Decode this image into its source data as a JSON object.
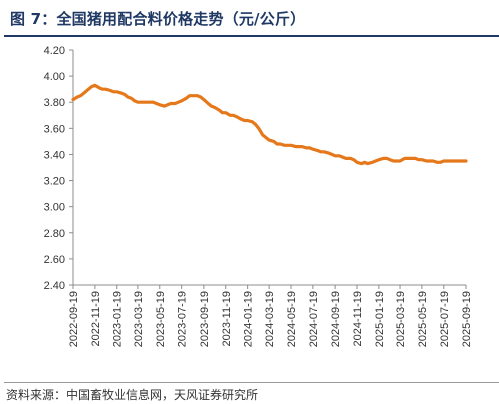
{
  "header": {
    "title": "图 7：全国猪用配合料价格走势（元/公斤）"
  },
  "footer": {
    "source": "资料来源：中国畜牧业信息网，天风证券研究所"
  },
  "chart_data": {
    "type": "line",
    "title": "图 7：全国猪用配合料价格走势（元/公斤）",
    "xlabel": "",
    "ylabel": "",
    "ylim": [
      2.4,
      4.2
    ],
    "yticks": [
      2.4,
      2.6,
      2.8,
      3.0,
      3.2,
      3.4,
      3.6,
      3.8,
      4.0,
      4.2
    ],
    "ytick_labels": [
      "2.40",
      "2.60",
      "2.80",
      "3.00",
      "3.20",
      "3.40",
      "3.60",
      "3.80",
      "4.00",
      "4.20"
    ],
    "xtick_labels": [
      "2022-09-19",
      "2022-11-19",
      "2023-01-19",
      "2023-03-19",
      "2023-05-19",
      "2023-07-19",
      "2023-09-19",
      "2023-11-19",
      "2024-01-19",
      "2024-03-19",
      "2024-05-19",
      "2024-07-19",
      "2024-09-19",
      "2024-11-19",
      "2025-01-19",
      "2025-03-19",
      "2025-05-19",
      "2025-07-19",
      "2025-09-19"
    ],
    "grid": false,
    "legend": "none",
    "line_color": "#e5781b",
    "series": [
      {
        "x": [
          "2022-09-19",
          "2022-10-01",
          "2022-10-10",
          "2022-10-19",
          "2022-11-01",
          "2022-11-10",
          "2022-11-19",
          "2022-12-01",
          "2022-12-10",
          "2022-12-19",
          "2023-01-01",
          "2023-01-10",
          "2023-01-19",
          "2023-02-01",
          "2023-02-10",
          "2023-02-19",
          "2023-03-01",
          "2023-03-10",
          "2023-03-19",
          "2023-04-01",
          "2023-04-10",
          "2023-04-19",
          "2023-05-01",
          "2023-05-10",
          "2023-05-19",
          "2023-06-01",
          "2023-06-10",
          "2023-06-19",
          "2023-07-01",
          "2023-07-10",
          "2023-07-19",
          "2023-08-01",
          "2023-08-10",
          "2023-08-19",
          "2023-09-01",
          "2023-09-10",
          "2023-09-19",
          "2023-10-01",
          "2023-10-10",
          "2023-10-19",
          "2023-11-01",
          "2023-11-10",
          "2023-11-19",
          "2023-12-01",
          "2023-12-10",
          "2023-12-19",
          "2024-01-01",
          "2024-01-10",
          "2024-01-19",
          "2024-02-01",
          "2024-02-10",
          "2024-02-19",
          "2024-03-01",
          "2024-03-10",
          "2024-03-19",
          "2024-04-01",
          "2024-04-10",
          "2024-04-19",
          "2024-05-01",
          "2024-05-10",
          "2024-05-19",
          "2024-06-01",
          "2024-06-10",
          "2024-06-19",
          "2024-07-01",
          "2024-07-10",
          "2024-07-19",
          "2024-08-01",
          "2024-08-10",
          "2024-08-19",
          "2024-09-01",
          "2024-09-10",
          "2024-09-19",
          "2024-10-01",
          "2024-10-10",
          "2024-10-19",
          "2024-11-01",
          "2024-11-10",
          "2024-11-19",
          "2024-12-01",
          "2024-12-10",
          "2024-12-19",
          "2025-01-01",
          "2025-01-10",
          "2025-01-19",
          "2025-02-01",
          "2025-02-10",
          "2025-02-19",
          "2025-03-01",
          "2025-03-10",
          "2025-03-19",
          "2025-04-01",
          "2025-04-10",
          "2025-04-19",
          "2025-05-01",
          "2025-05-10",
          "2025-05-19",
          "2025-06-01",
          "2025-06-10",
          "2025-06-19",
          "2025-07-01",
          "2025-07-10",
          "2025-07-19",
          "2025-08-01",
          "2025-08-10",
          "2025-08-19",
          "2025-09-01",
          "2025-09-10",
          "2025-09-19"
        ],
        "values": [
          3.82,
          3.84,
          3.85,
          3.87,
          3.9,
          3.92,
          3.93,
          3.91,
          3.9,
          3.9,
          3.89,
          3.88,
          3.88,
          3.87,
          3.86,
          3.84,
          3.83,
          3.81,
          3.8,
          3.8,
          3.8,
          3.8,
          3.8,
          3.79,
          3.78,
          3.77,
          3.78,
          3.79,
          3.79,
          3.8,
          3.81,
          3.83,
          3.85,
          3.85,
          3.85,
          3.84,
          3.82,
          3.79,
          3.77,
          3.76,
          3.74,
          3.72,
          3.72,
          3.7,
          3.7,
          3.69,
          3.67,
          3.66,
          3.66,
          3.65,
          3.63,
          3.6,
          3.55,
          3.53,
          3.51,
          3.5,
          3.48,
          3.48,
          3.47,
          3.47,
          3.47,
          3.46,
          3.46,
          3.46,
          3.45,
          3.45,
          3.44,
          3.43,
          3.42,
          3.42,
          3.41,
          3.4,
          3.39,
          3.39,
          3.38,
          3.37,
          3.37,
          3.36,
          3.34,
          3.33,
          3.34,
          3.33,
          3.34,
          3.35,
          3.36,
          3.37,
          3.37,
          3.36,
          3.35,
          3.35,
          3.35,
          3.37,
          3.37,
          3.37,
          3.37,
          3.36,
          3.36,
          3.35,
          3.35,
          3.35,
          3.34,
          3.34,
          3.35,
          3.35,
          3.35,
          3.35,
          3.35,
          3.35,
          3.35
        ]
      }
    ]
  }
}
